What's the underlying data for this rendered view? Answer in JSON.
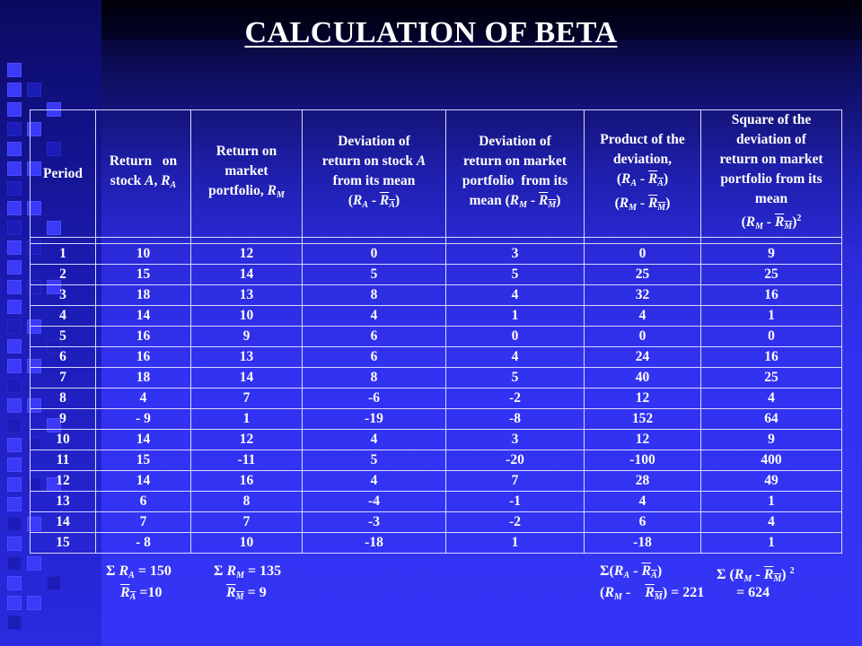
{
  "slide": {
    "title": "CALCULATION OF BETA"
  },
  "table": {
    "headers": {
      "period": "Period",
      "return_stock": "Return on stock A, RA",
      "return_market": "Return on market portfolio, RM",
      "dev_stock": "Deviation of return on stock A from its mean (RA - RA)",
      "dev_market": "Deviation of return on market portfolio from its mean (RM - RM)",
      "product": "Product of the deviation, (RA - RA) (RM - RM)",
      "square": "Square of the deviation of return on market portfolio from its mean (RM - RM)2"
    },
    "rows": [
      {
        "period": "1",
        "ra": "10",
        "rm": "12",
        "dev_a": "0",
        "dev_m": "3",
        "product": "0",
        "square": "9"
      },
      {
        "period": "2",
        "ra": "15",
        "rm": "14",
        "dev_a": "5",
        "dev_m": "5",
        "product": "25",
        "square": "25"
      },
      {
        "period": "3",
        "ra": "18",
        "rm": "13",
        "dev_a": "8",
        "dev_m": "4",
        "product": "32",
        "square": "16"
      },
      {
        "period": "4",
        "ra": "14",
        "rm": "10",
        "dev_a": "4",
        "dev_m": "1",
        "product": "4",
        "square": "1"
      },
      {
        "period": "5",
        "ra": "16",
        "rm": "9",
        "dev_a": "6",
        "dev_m": "0",
        "product": "0",
        "square": "0"
      },
      {
        "period": "6",
        "ra": "16",
        "rm": "13",
        "dev_a": "6",
        "dev_m": "4",
        "product": "24",
        "square": "16"
      },
      {
        "period": "7",
        "ra": "18",
        "rm": "14",
        "dev_a": "8",
        "dev_m": "5",
        "product": "40",
        "square": "25"
      },
      {
        "period": "8",
        "ra": "4",
        "rm": "7",
        "dev_a": "-6",
        "dev_m": "-2",
        "product": "12",
        "square": "4"
      },
      {
        "period": "9",
        "ra": "- 9",
        "rm": "1",
        "dev_a": "-19",
        "dev_m": "-8",
        "product": "152",
        "square": "64"
      },
      {
        "period": "10",
        "ra": "14",
        "rm": "12",
        "dev_a": "4",
        "dev_m": "3",
        "product": "12",
        "square": "9"
      },
      {
        "period": "11",
        "ra": "15",
        "rm": "-11",
        "dev_a": "5",
        "dev_m": "-20",
        "product": "-100",
        "square": "400"
      },
      {
        "period": "12",
        "ra": "14",
        "rm": "16",
        "dev_a": "4",
        "dev_m": "7",
        "product": "28",
        "square": "49"
      },
      {
        "period": "13",
        "ra": "6",
        "rm": "8",
        "dev_a": "-4",
        "dev_m": "-1",
        "product": "4",
        "square": "1"
      },
      {
        "period": "14",
        "ra": "7",
        "rm": "7",
        "dev_a": "-3",
        "dev_m": "-2",
        "product": "6",
        "square": "4"
      },
      {
        "period": "15",
        "ra": "- 8",
        "rm": "10",
        "dev_a": "-18",
        "dev_m": "1",
        "product": "-18",
        "square": "1"
      }
    ]
  },
  "totals": {
    "sum_ra": "= 150",
    "mean_ra": "=10",
    "sum_rm": "= 135",
    "mean_rm": "= 9",
    "sum_product": "= 221",
    "sum_square": "= 624"
  }
}
